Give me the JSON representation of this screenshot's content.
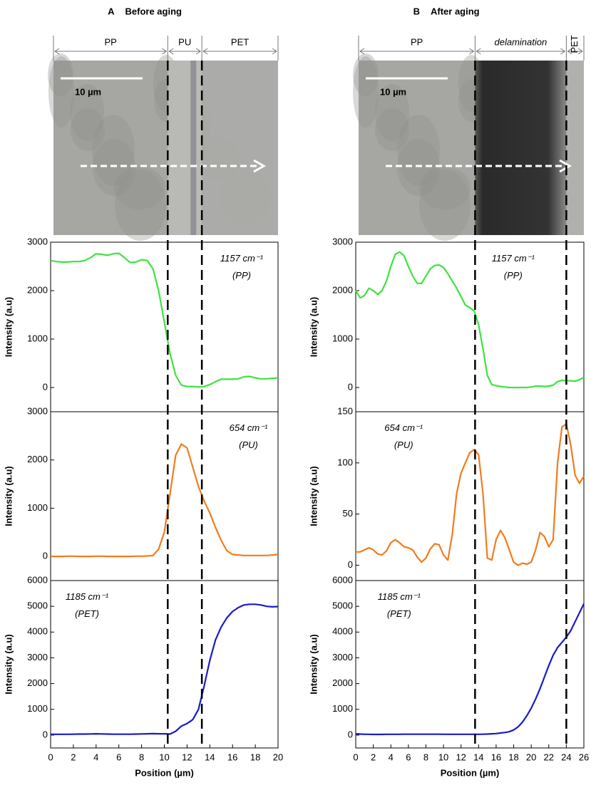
{
  "panels": [
    {
      "label": "A",
      "title": "Before aging",
      "regions": [
        "PP",
        "PU",
        "PET"
      ],
      "scale_bar": "10 µm",
      "interfaces": [
        10.3,
        13.3
      ],
      "xlim": [
        0,
        20
      ]
    },
    {
      "label": "B",
      "title": "After aging",
      "regions": [
        "PP",
        "delamination",
        "PET"
      ],
      "scale_bar": "10 µm",
      "interfaces": [
        13.6,
        24
      ],
      "xlim": [
        0,
        26
      ]
    }
  ],
  "chart_data": [
    {
      "type": "line",
      "annotation": [
        "1157 cm⁻¹",
        "(PP)"
      ],
      "ylabel": "Intensity (a.u)",
      "color": "#3de43d",
      "xlim": [
        0,
        20
      ],
      "ylim": [
        -500,
        3000
      ],
      "yticks": [
        0,
        1000,
        2000,
        3000
      ],
      "x": [
        0,
        0.5,
        1,
        1.5,
        2,
        2.5,
        3,
        3.5,
        4,
        4.5,
        5,
        5.5,
        6,
        6.5,
        7,
        7.5,
        8,
        8.5,
        9,
        9.5,
        10,
        10.5,
        11,
        11.5,
        12,
        12.5,
        13,
        13.5,
        14,
        14.5,
        15,
        15.5,
        16,
        16.5,
        17,
        17.5,
        18,
        18.5,
        19,
        19.5,
        20
      ],
      "values": [
        2620,
        2600,
        2590,
        2590,
        2600,
        2600,
        2620,
        2680,
        2760,
        2750,
        2730,
        2760,
        2770,
        2680,
        2580,
        2590,
        2640,
        2620,
        2450,
        2000,
        1350,
        700,
        250,
        50,
        20,
        20,
        10,
        20,
        60,
        120,
        170,
        170,
        170,
        180,
        220,
        230,
        200,
        180,
        180,
        190,
        200
      ]
    },
    {
      "type": "line",
      "annotation": [
        "654 cm⁻¹",
        "(PU)"
      ],
      "ylabel": "Intensity (a.u)",
      "color": "#f07c1e",
      "xlim": [
        0,
        20
      ],
      "ylim": [
        -500,
        3000
      ],
      "yticks": [
        0,
        1000,
        2000,
        3000
      ],
      "x": [
        0,
        0.5,
        1,
        1.5,
        2,
        2.5,
        3,
        3.5,
        4,
        4.5,
        5,
        5.5,
        6,
        6.5,
        7,
        7.5,
        8,
        8.5,
        9,
        9.5,
        10,
        10.5,
        11,
        11.5,
        12,
        12.5,
        13,
        13.5,
        14,
        14.5,
        15,
        15.5,
        16,
        16.5,
        17,
        17.5,
        18,
        18.5,
        19,
        19.5,
        20
      ],
      "values": [
        0,
        0,
        0,
        5,
        5,
        0,
        0,
        0,
        5,
        5,
        0,
        0,
        0,
        0,
        0,
        5,
        5,
        10,
        20,
        150,
        500,
        1300,
        2100,
        2330,
        2250,
        1850,
        1450,
        1150,
        900,
        600,
        330,
        120,
        40,
        30,
        20,
        20,
        20,
        20,
        20,
        30,
        40
      ]
    },
    {
      "type": "line",
      "annotation": [
        "1185 cm⁻¹",
        "(PET)"
      ],
      "ylabel": "Intensity (a.u)",
      "xlabel": "Position (µm)",
      "color": "#1a1acc",
      "xlim": [
        0,
        20
      ],
      "ylim": [
        -500,
        6000
      ],
      "yticks": [
        0,
        1000,
        2000,
        3000,
        4000,
        5000,
        6000
      ],
      "xticks": [
        0,
        2,
        4,
        6,
        8,
        10,
        12,
        14,
        16,
        18,
        20
      ],
      "x": [
        0,
        0.5,
        1,
        1.5,
        2,
        2.5,
        3,
        3.5,
        4,
        4.5,
        5,
        5.5,
        6,
        6.5,
        7,
        7.5,
        8,
        8.5,
        9,
        9.5,
        10,
        10.5,
        11,
        11.5,
        12,
        12.5,
        13,
        13.5,
        14,
        14.5,
        15,
        15.5,
        16,
        16.5,
        17,
        17.5,
        18,
        18.5,
        19,
        19.5,
        20
      ],
      "values": [
        30,
        30,
        30,
        30,
        35,
        40,
        40,
        45,
        50,
        45,
        40,
        35,
        35,
        35,
        35,
        40,
        45,
        50,
        55,
        50,
        50,
        40,
        150,
        350,
        450,
        600,
        1000,
        1900,
        2900,
        3700,
        4200,
        4550,
        4800,
        4950,
        5050,
        5080,
        5080,
        5050,
        5000,
        4980,
        4990
      ]
    },
    {
      "type": "line",
      "annotation": [
        "1157 cm⁻¹",
        "(PP)"
      ],
      "ylabel": "Intensity (a.u)",
      "color": "#3de43d",
      "xlim": [
        0,
        26
      ],
      "ylim": [
        -500,
        3000
      ],
      "yticks": [
        0,
        1000,
        2000,
        3000
      ],
      "x": [
        0,
        0.5,
        1,
        1.5,
        2,
        2.5,
        3,
        3.5,
        4,
        4.5,
        5,
        5.5,
        6,
        6.5,
        7,
        7.5,
        8,
        8.5,
        9,
        9.5,
        10,
        10.5,
        11,
        11.5,
        12,
        12.5,
        13,
        13.5,
        14,
        14.5,
        15,
        15.5,
        16,
        16.5,
        17,
        17.5,
        18,
        18.5,
        19,
        19.5,
        20,
        20.5,
        21,
        21.5,
        22,
        22.5,
        23,
        23.5,
        24,
        24.5,
        25,
        25.5,
        26
      ],
      "values": [
        2000,
        1850,
        1900,
        2050,
        2000,
        1920,
        2000,
        2200,
        2500,
        2750,
        2800,
        2720,
        2500,
        2300,
        2150,
        2150,
        2300,
        2450,
        2520,
        2530,
        2480,
        2350,
        2200,
        2050,
        1880,
        1700,
        1650,
        1580,
        1300,
        800,
        250,
        60,
        40,
        20,
        10,
        0,
        0,
        0,
        0,
        0,
        10,
        30,
        30,
        20,
        30,
        50,
        120,
        150,
        140,
        140,
        130,
        160,
        210
      ]
    },
    {
      "type": "line",
      "annotation": [
        "654 cm⁻¹",
        "(PU)"
      ],
      "ylabel": "Intensity (a.u)",
      "color": "#f07c1e",
      "xlim": [
        0,
        26
      ],
      "ylim": [
        -15,
        150
      ],
      "yticks": [
        0,
        50,
        100,
        150
      ],
      "x": [
        0,
        0.5,
        1,
        1.5,
        2,
        2.5,
        3,
        3.5,
        4,
        4.5,
        5,
        5.5,
        6,
        6.5,
        7,
        7.5,
        8,
        8.5,
        9,
        9.5,
        10,
        10.5,
        11,
        11.5,
        12,
        12.5,
        13,
        13.5,
        14,
        14.5,
        15,
        15.5,
        16,
        16.5,
        17,
        17.5,
        18,
        18.5,
        19,
        19.5,
        20,
        20.5,
        21,
        21.5,
        22,
        22.5,
        23,
        23.5,
        24,
        24.5,
        25,
        25.5,
        26
      ],
      "values": [
        13,
        13,
        15,
        17,
        15,
        11,
        10,
        14,
        22,
        25,
        22,
        18,
        17,
        15,
        8,
        3,
        7,
        16,
        21,
        20,
        10,
        5,
        30,
        70,
        90,
        100,
        110,
        113,
        108,
        70,
        7,
        5,
        25,
        34,
        27,
        15,
        3,
        0,
        2,
        1,
        3,
        15,
        32,
        28,
        18,
        25,
        100,
        135,
        138,
        118,
        88,
        80,
        87
      ]
    },
    {
      "type": "line",
      "annotation": [
        "1185 cm⁻¹",
        "(PET)"
      ],
      "ylabel": "Intensity (a.u)",
      "xlabel": "Position (µm)",
      "color": "#1a1acc",
      "xlim": [
        0,
        26
      ],
      "ylim": [
        -500,
        6000
      ],
      "yticks": [
        0,
        1000,
        2000,
        3000,
        4000,
        5000,
        6000
      ],
      "xticks": [
        0,
        2,
        4,
        6,
        8,
        10,
        12,
        14,
        16,
        18,
        20,
        22,
        24,
        26
      ],
      "x": [
        0,
        0.5,
        1,
        1.5,
        2,
        2.5,
        3,
        3.5,
        4,
        4.5,
        5,
        5.5,
        6,
        6.5,
        7,
        7.5,
        8,
        8.5,
        9,
        9.5,
        10,
        10.5,
        11,
        11.5,
        12,
        12.5,
        13,
        13.5,
        14,
        14.5,
        15,
        15.5,
        16,
        16.5,
        17,
        17.5,
        18,
        18.5,
        19,
        19.5,
        20,
        20.5,
        21,
        21.5,
        22,
        22.5,
        23,
        23.5,
        24,
        24.5,
        25,
        25.5,
        26
      ],
      "values": [
        50,
        40,
        30,
        30,
        25,
        25,
        25,
        30,
        30,
        30,
        30,
        35,
        35,
        35,
        35,
        35,
        35,
        35,
        35,
        35,
        30,
        30,
        30,
        30,
        30,
        30,
        30,
        30,
        30,
        35,
        40,
        50,
        60,
        80,
        100,
        130,
        200,
        320,
        500,
        750,
        1050,
        1400,
        1800,
        2250,
        2700,
        3100,
        3400,
        3600,
        3800,
        4050,
        4400,
        4750,
        5100
      ]
    }
  ]
}
